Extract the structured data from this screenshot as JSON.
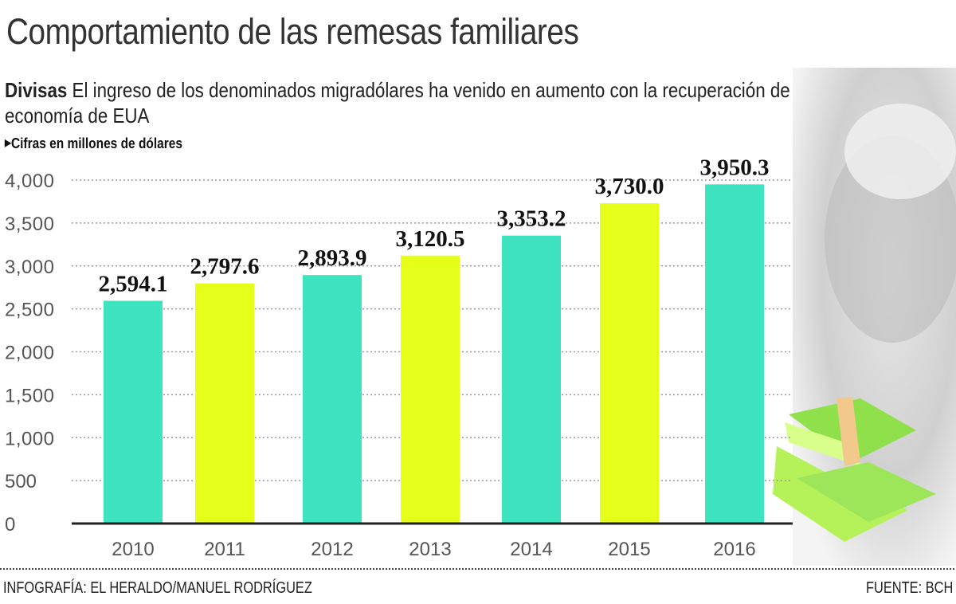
{
  "header": {
    "title": "Comportamiento de las remesas familiares",
    "subtitle_bold": "Divisas",
    "subtitle_text": "El ingreso de los denominados migradólares ha venido en aumento con la recuperación de la economía de EUA",
    "unit_note": "Cifras en millones de dólares"
  },
  "footer": {
    "credit": "INFOGRAFÍA: EL HERALDO/MANUEL RODRÍGUEZ",
    "source": "FUENTE: BCH"
  },
  "colors": {
    "teal": "#3ee3c0",
    "lime": "#e6ff1a",
    "grid": "#999999",
    "axis": "#222222"
  },
  "chart_data": {
    "type": "bar",
    "title": "Comportamiento de las remesas familiares",
    "ylabel": "Cifras en millones de dólares",
    "categories": [
      "2010",
      "2011",
      "2012",
      "2013",
      "2014",
      "2015",
      "2016"
    ],
    "values": [
      2594.1,
      2797.6,
      2893.9,
      3120.5,
      3353.2,
      3730.0,
      3950.3
    ],
    "data_labels": [
      "2,594.1",
      "2,797.6",
      "2,893.9",
      "3,120.5",
      "3,353.2",
      "3,730.0",
      "3,950.3"
    ],
    "bar_colors": [
      "#3ee3c0",
      "#e6ff1a",
      "#3ee3c0",
      "#e6ff1a",
      "#3ee3c0",
      "#e6ff1a",
      "#3ee3c0"
    ],
    "yticks": [
      0,
      500,
      1000,
      1500,
      2000,
      2500,
      3000,
      3500,
      4000
    ],
    "ytick_labels": [
      "0",
      "500",
      "1,000",
      "1,500",
      "2,000",
      "2,500",
      "3,000",
      "3,500",
      "4,000"
    ],
    "ylim": [
      0,
      4000
    ],
    "grid": true,
    "legend": "none"
  }
}
